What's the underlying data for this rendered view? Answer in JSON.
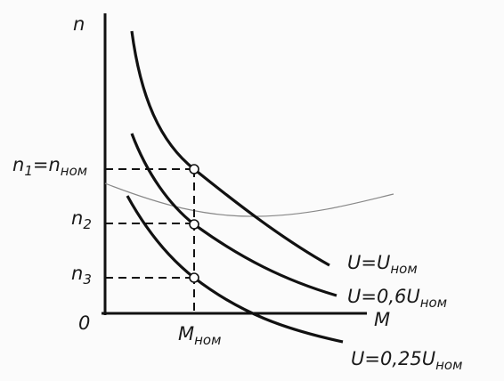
{
  "axes": {
    "y_label": [
      "n"
    ],
    "x_label": [
      "M"
    ],
    "origin": [
      "0"
    ]
  },
  "levels": [
    {
      "label": [
        "n",
        "1",
        "=n",
        "ном"
      ]
    },
    {
      "label": [
        "n",
        "2"
      ]
    },
    {
      "label": [
        "n",
        "3"
      ]
    }
  ],
  "torque_label": [
    "M",
    "ном"
  ],
  "curves": [
    {
      "label": [
        "U=U",
        "ном"
      ]
    },
    {
      "label": [
        "U=0,6U",
        "ном"
      ]
    },
    {
      "label": [
        "U=0,25U",
        "ном"
      ]
    }
  ]
}
